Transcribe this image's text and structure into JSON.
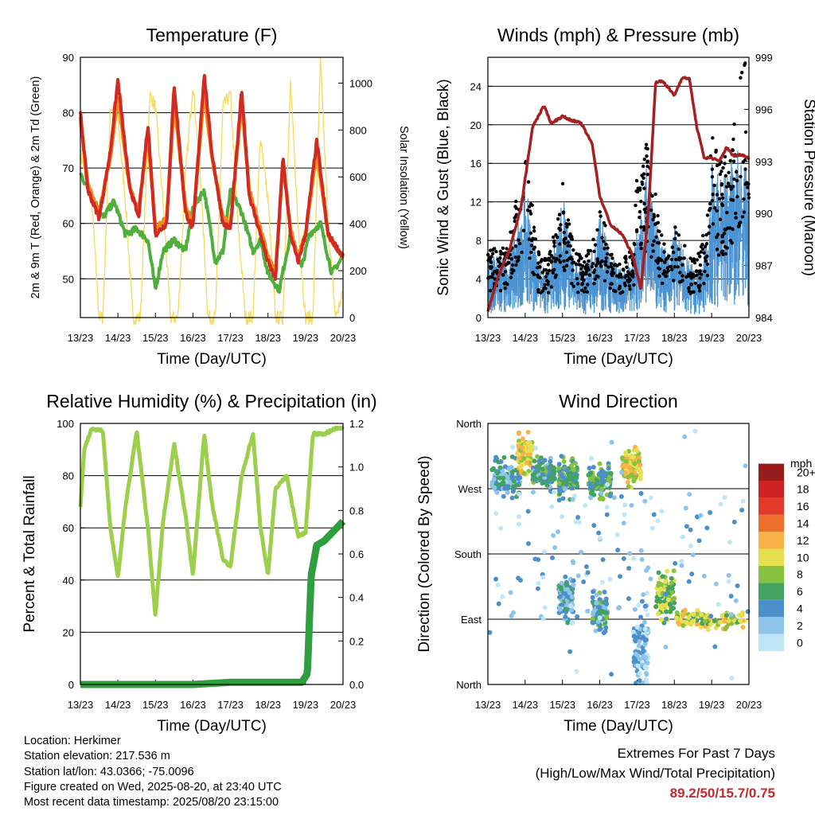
{
  "x_ticks": [
    "13/23",
    "14/23",
    "15/23",
    "16/23",
    "17/23",
    "18/23",
    "19/23",
    "20/23"
  ],
  "x_label": "Time (Day/UTC)",
  "colors": {
    "temp_2m": "#d12a22",
    "temp_9m": "#f08a1e",
    "dewpoint": "#4fae3c",
    "solar": "#f5dc64",
    "wind": "#4b93d2",
    "gust": "#000000",
    "pressure": "#a52020",
    "rh": "#9ccf4c",
    "precip": "#2e9e3e"
  },
  "chart_data": [
    {
      "type": "line",
      "title": "Temperature (F)",
      "ylabel": "2m & 9m T (Red, Orange) & 2m Td (Green)",
      "y2label": "Solar Insolation (Yellow)",
      "ylim": [
        43,
        90
      ],
      "y2lim": [
        0,
        1110
      ],
      "y_ticks": [
        50,
        60,
        70,
        80,
        90
      ],
      "y2_ticks": [
        0,
        200,
        400,
        600,
        800,
        1000
      ],
      "grid": true,
      "series": [
        {
          "key": "temp_2m",
          "x": [
            0,
            0.2,
            0.5,
            0.8,
            1.0,
            1.3,
            1.55,
            1.8,
            2.0,
            2.3,
            2.5,
            2.8,
            3.0,
            3.3,
            3.5,
            3.8,
            4.0,
            4.3,
            4.5,
            4.8,
            5.0,
            5.2,
            5.4,
            5.6,
            5.8,
            6.0,
            6.3,
            6.6,
            6.9,
            7.0
          ],
          "values": [
            80,
            66,
            61,
            73,
            86,
            67,
            61,
            78,
            58,
            60,
            85,
            62,
            59,
            87,
            73,
            60,
            59,
            84,
            65,
            58,
            53,
            50,
            72,
            58,
            53,
            58,
            75,
            58,
            55,
            54
          ]
        },
        {
          "key": "temp_9m",
          "x": [
            0,
            0.2,
            0.5,
            0.8,
            1.0,
            1.3,
            1.55,
            1.8,
            2.0,
            2.3,
            2.5,
            2.8,
            3.0,
            3.3,
            3.5,
            3.8,
            4.0,
            4.3,
            4.5,
            4.8,
            5.0,
            5.2,
            5.4,
            5.6,
            5.8,
            6.0,
            6.3,
            6.6,
            6.9,
            7.0
          ],
          "values": [
            79,
            67,
            62,
            72,
            83,
            67,
            62,
            76,
            59,
            61,
            82,
            63,
            60,
            84,
            72,
            61,
            60,
            82,
            66,
            59,
            54,
            51,
            71,
            59,
            54,
            58,
            73,
            58,
            55,
            54
          ]
        },
        {
          "key": "dewpoint",
          "x": [
            0,
            0.3,
            0.6,
            0.9,
            1.2,
            1.5,
            1.8,
            2.0,
            2.2,
            2.5,
            2.8,
            3.0,
            3.3,
            3.6,
            3.8,
            4.0,
            4.3,
            4.6,
            4.8,
            5.0,
            5.3,
            5.6,
            5.9,
            6.1,
            6.4,
            6.7,
            7.0
          ],
          "values": [
            69,
            65,
            61,
            64,
            58,
            59,
            57,
            48,
            55,
            57,
            55,
            63,
            66,
            53,
            55,
            66,
            62,
            55,
            57,
            51,
            48,
            58,
            52,
            58,
            60,
            51,
            54
          ]
        },
        {
          "key": "solar",
          "x": [
            0,
            0.3,
            0.5,
            0.6,
            0.8,
            1.0,
            1.2,
            1.4,
            1.6,
            1.85,
            2.0,
            2.2,
            2.4,
            2.6,
            2.8,
            3.0,
            3.2,
            3.4,
            3.6,
            3.8,
            4.0,
            4.2,
            4.4,
            4.6,
            4.8,
            5.0,
            5.2,
            5.4,
            5.6,
            5.8,
            6.0,
            6.2,
            6.4,
            6.6,
            6.8,
            7.0
          ],
          "values": [
            700,
            500,
            0,
            0,
            900,
            850,
            500,
            0,
            0,
            950,
            900,
            500,
            0,
            0,
            600,
            1000,
            600,
            0,
            0,
            900,
            950,
            400,
            0,
            0,
            780,
            500,
            0,
            0,
            1000,
            400,
            0,
            0,
            1100,
            400,
            0,
            100
          ]
        }
      ]
    },
    {
      "type": "scatter",
      "title": "Winds (mph) & Pressure (mb)",
      "ylabel": "Sonic Wind & Gust (Blue, Black)",
      "y2label": "Station Pressure (Maroon)",
      "ylim": [
        0,
        27
      ],
      "y2lim": [
        984,
        999
      ],
      "y_ticks": [
        0,
        4,
        8,
        12,
        16,
        20,
        24
      ],
      "y2_ticks": [
        984,
        987,
        990,
        993,
        996,
        999
      ],
      "grid": true,
      "series": [
        {
          "key": "wind",
          "x": [
            0.0,
            0.5,
            0.7,
            0.9,
            1.0,
            1.3,
            1.6,
            1.9,
            2.0,
            2.3,
            2.6,
            2.9,
            3.0,
            3.3,
            3.6,
            3.9,
            4.0,
            4.3,
            4.6,
            4.9,
            5.0,
            5.3,
            5.6,
            5.9,
            6.0,
            6.3,
            6.6,
            6.9,
            7.0
          ],
          "values": [
            4,
            4,
            5,
            7,
            9,
            4,
            3,
            6,
            8,
            4,
            3,
            5,
            7,
            4,
            3,
            4,
            7,
            10,
            5,
            4,
            6,
            4,
            3,
            5,
            10,
            9,
            11,
            10,
            9
          ]
        },
        {
          "key": "gust",
          "x": [
            0.0,
            0.5,
            0.7,
            0.9,
            1.0,
            1.3,
            1.6,
            1.9,
            2.0,
            2.3,
            2.6,
            2.9,
            3.0,
            3.3,
            3.6,
            3.9,
            4.0,
            4.3,
            4.6,
            4.9,
            5.0,
            5.3,
            5.6,
            5.9,
            6.0,
            6.3,
            6.6,
            6.9,
            7.0
          ],
          "values": [
            6,
            6,
            9,
            13,
            17,
            6,
            5,
            9,
            12,
            6,
            5,
            8,
            10,
            6,
            5,
            6,
            13,
            16,
            8,
            6,
            9,
            6,
            5,
            9,
            16,
            13,
            18,
            23,
            13
          ]
        },
        {
          "key": "pressure",
          "x": [
            0.0,
            0.3,
            0.6,
            0.9,
            1.2,
            1.5,
            1.7,
            2.0,
            2.2,
            2.5,
            2.8,
            3.0,
            3.3,
            3.6,
            3.9,
            4.1,
            4.3,
            4.5,
            4.7,
            5.0,
            5.2,
            5.4,
            5.6,
            5.8,
            6.0,
            6.2,
            6.4,
            6.6,
            6.8,
            7.0
          ],
          "values": [
            984.4,
            986.5,
            988,
            990.5,
            995,
            996.2,
            995.2,
            995.6,
            995.4,
            995.2,
            994,
            991,
            989.3,
            988.8,
            987.5,
            985.6,
            990,
            997.6,
            997.6,
            996.8,
            997.8,
            997.8,
            995,
            993.2,
            993.2,
            993,
            993.8,
            993.3,
            993.4,
            993.2
          ]
        }
      ]
    },
    {
      "type": "line",
      "title": "Relative Humidity (%) & Precipitation (in)",
      "ylabel": "Percent & Total Rainfall",
      "ylim": [
        0,
        100
      ],
      "y2lim": [
        0,
        1.2
      ],
      "y_ticks": [
        0,
        20,
        40,
        60,
        80,
        100
      ],
      "y2_ticks": [
        "0.0",
        "0.2",
        "0.4",
        "0.6",
        "0.8",
        "1.0",
        "1.2"
      ],
      "grid": true,
      "series": [
        {
          "key": "rh",
          "x": [
            0,
            0.1,
            0.3,
            0.6,
            0.8,
            1.0,
            1.2,
            1.5,
            1.8,
            2.0,
            2.2,
            2.5,
            2.8,
            3.0,
            3.3,
            3.5,
            3.8,
            4.0,
            4.3,
            4.6,
            4.8,
            5.0,
            5.2,
            5.5,
            5.8,
            6.0,
            6.2,
            6.5,
            6.8,
            7.0
          ],
          "values": [
            68,
            90,
            98,
            97,
            60,
            41,
            68,
            97,
            60,
            26,
            62,
            92,
            65,
            42,
            96,
            70,
            48,
            45,
            80,
            96,
            60,
            42,
            75,
            80,
            57,
            58,
            96,
            96,
            98,
            98
          ]
        },
        {
          "key": "precip",
          "x": [
            0,
            1,
            2,
            3,
            4,
            5,
            5.9,
            6.05,
            6.15,
            6.3,
            6.5,
            7.0
          ],
          "values": [
            0,
            0,
            0,
            0,
            0.01,
            0.01,
            0.01,
            0.05,
            0.5,
            0.64,
            0.66,
            0.75
          ]
        }
      ]
    },
    {
      "type": "scatter",
      "title": "Wind Direction",
      "ylabel": "Direction (Colored By Speed)",
      "y_ticks": [
        "North",
        "East",
        "South",
        "West",
        "North"
      ],
      "ylim": [
        0,
        360
      ],
      "legend_title": "mph",
      "legend_labels": [
        "0",
        "2",
        "4",
        "6",
        "8",
        "10",
        "12",
        "14",
        "16",
        "18",
        "20+"
      ],
      "legend_colors": [
        "#bfe6f7",
        "#8fc4ea",
        "#4d8fcb",
        "#41a35f",
        "#86c23e",
        "#e6df4f",
        "#f8b247",
        "#ee6e2c",
        "#e13a2b",
        "#cc2222",
        "#991c1c"
      ],
      "clusters": [
        {
          "x0": 0.1,
          "x1": 0.9,
          "dir": 285,
          "spread": 30,
          "speed": 4
        },
        {
          "x0": 0.8,
          "x1": 1.2,
          "dir": 320,
          "spread": 30,
          "speed": 10
        },
        {
          "x0": 1.2,
          "x1": 1.8,
          "dir": 290,
          "spread": 25,
          "speed": 5
        },
        {
          "x0": 1.9,
          "x1": 2.4,
          "dir": 285,
          "spread": 30,
          "speed": 6
        },
        {
          "x0": 1.9,
          "x1": 2.3,
          "dir": 120,
          "spread": 35,
          "speed": 4
        },
        {
          "x0": 2.7,
          "x1": 3.3,
          "dir": 280,
          "spread": 25,
          "speed": 6
        },
        {
          "x0": 2.8,
          "x1": 3.2,
          "dir": 100,
          "spread": 30,
          "speed": 5
        },
        {
          "x0": 3.6,
          "x1": 4.1,
          "dir": 300,
          "spread": 30,
          "speed": 10
        },
        {
          "x0": 3.9,
          "x1": 4.3,
          "dir": 50,
          "spread": 60,
          "speed": 2
        },
        {
          "x0": 4.5,
          "x1": 5.0,
          "dir": 120,
          "spread": 40,
          "speed": 8
        },
        {
          "x0": 5.0,
          "x1": 6.9,
          "dir": 90,
          "spread": 15,
          "speed": 9
        },
        {
          "x0": 0.0,
          "x1": 7.0,
          "dir": 180,
          "spread": 180,
          "speed": 2
        }
      ]
    }
  ],
  "info": {
    "location": "Location: Herkimer",
    "elevation": "Station elevation: 217.536 m",
    "latlon": "Station lat/lon: 43.0366; -75.0096",
    "created": "Figure created on Wed, 2025-08-20, at 23:40 UTC",
    "recent": "Most recent data timestamp: 2025/08/20 23:15:00"
  },
  "extremes": {
    "line1": "Extremes For Past 7 Days",
    "line2": "(High/Low/Max Wind/Total Precipitation)",
    "values": "89.2/50/15.7/0.75"
  }
}
